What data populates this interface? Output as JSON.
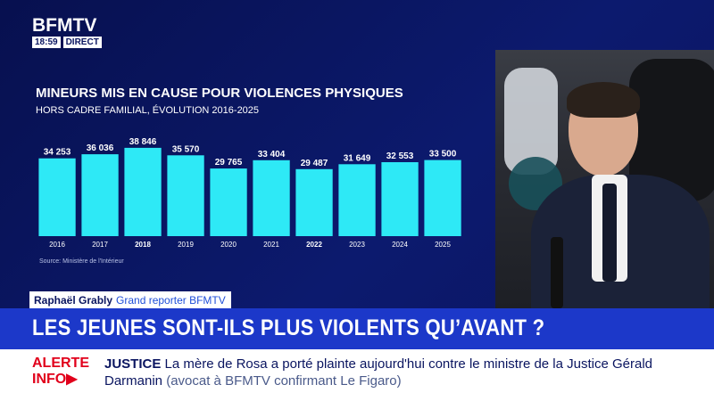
{
  "logo": {
    "brand": "BFMTV",
    "time": "18:59",
    "live": "DIRECT"
  },
  "chart_data": {
    "type": "bar",
    "title": "MINEURS MIS EN CAUSE POUR VIOLENCES PHYSIQUES",
    "subtitle": "HORS CADRE FAMILIAL, ÉVOLUTION 2016-2025",
    "categories": [
      "2016",
      "2017",
      "2018",
      "2019",
      "2020",
      "2021",
      "2022",
      "2023",
      "2024",
      "2025"
    ],
    "values": [
      34253,
      36036,
      38846,
      35570,
      29765,
      33404,
      29487,
      31649,
      32553,
      33500
    ],
    "value_labels": [
      "34 253",
      "36 036",
      "38 846",
      "35 570",
      "29 765",
      "33 404",
      "29 487",
      "31 649",
      "32 553",
      "33 500"
    ],
    "bold_categories": [
      "2018",
      "2022"
    ],
    "bar_color": "#2ee9f6",
    "ylim": [
      0,
      40000
    ],
    "source": "Source: Ministère de l'Intérieur"
  },
  "caption": {
    "name": "Raphaël Grably",
    "role": "Grand reporter BFMTV"
  },
  "headline": "LES JEUNES SONT-ILS PLUS VIOLENTS QU’AVANT  ?",
  "ticker": {
    "alert_line1": "ALERTE",
    "alert_line2": "INFO",
    "category": "JUSTICE",
    "text": "La mère de Rosa a porté plainte aujourd'hui contre le ministre de la Justice Gérald Darmanin",
    "parenthetical": "(avocat à BFMTV confirmant Le Figaro)"
  },
  "colors": {
    "background": "#0a1560",
    "headline_bar": "#1c38c9",
    "alert_red": "#e1001b",
    "bar": "#2ee9f6"
  }
}
